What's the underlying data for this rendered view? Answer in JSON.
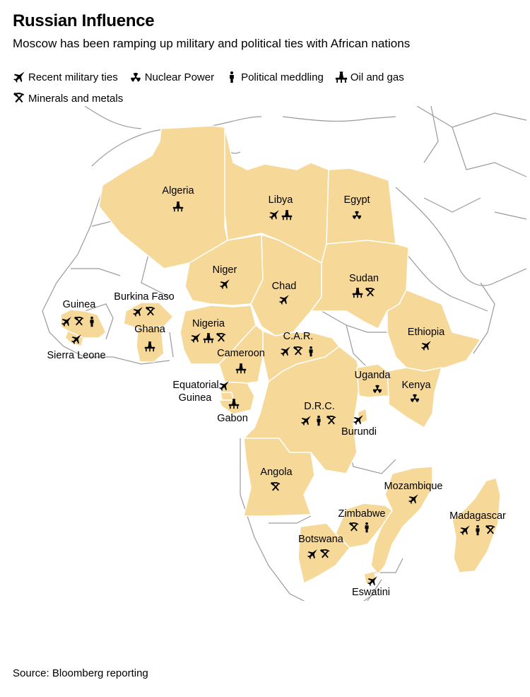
{
  "title": "Russian Influence",
  "subtitle": "Moscow has been ramping up military and political ties with African nations",
  "source": "Source: Bloomberg reporting",
  "colors": {
    "highlight": "#f6d998",
    "border": "#ffffff",
    "base_land": "#ffffff",
    "outline": "#9a9a9a"
  },
  "legend": {
    "military": {
      "label": "Recent military ties",
      "icon": "fighter-jet-icon"
    },
    "nuclear": {
      "label": "Nuclear Power",
      "icon": "radiation-icon"
    },
    "political": {
      "label": "Political meddling",
      "icon": "person-icon"
    },
    "oil": {
      "label": "Oil and gas",
      "icon": "oil-rig-icon"
    },
    "minerals": {
      "label": "Minerals and metals",
      "icon": "hammer-pick-icon"
    }
  },
  "countries": [
    {
      "name": "Algeria",
      "label": "Algeria",
      "ties": [
        "oil"
      ]
    },
    {
      "name": "Libya",
      "label": "Libya",
      "ties": [
        "military",
        "oil"
      ]
    },
    {
      "name": "Egypt",
      "label": "Egypt",
      "ties": [
        "nuclear"
      ]
    },
    {
      "name": "Niger",
      "label": "Niger",
      "ties": [
        "military"
      ]
    },
    {
      "name": "Chad",
      "label": "Chad",
      "ties": [
        "military"
      ]
    },
    {
      "name": "Sudan",
      "label": "Sudan",
      "ties": [
        "oil",
        "minerals"
      ]
    },
    {
      "name": "Guinea",
      "label": "Guinea",
      "ties": [
        "military",
        "minerals",
        "political"
      ]
    },
    {
      "name": "Sierra Leone",
      "label": "Sierra Leone",
      "ties": [
        "military"
      ]
    },
    {
      "name": "Burkina Faso",
      "label": "Burkina Faso",
      "ties": [
        "military",
        "minerals"
      ]
    },
    {
      "name": "Ghana",
      "label": "Ghana",
      "ties": [
        "oil"
      ]
    },
    {
      "name": "Nigeria",
      "label": "Nigeria",
      "ties": [
        "military",
        "oil",
        "minerals"
      ]
    },
    {
      "name": "Cameroon",
      "label": "Cameroon",
      "ties": [
        "oil"
      ]
    },
    {
      "name": "C.A.R.",
      "label": "C.A.R.",
      "ties": [
        "military",
        "minerals",
        "political"
      ]
    },
    {
      "name": "Ethiopia",
      "label": "Ethiopia",
      "ties": [
        "military"
      ]
    },
    {
      "name": "Equatorial Guinea",
      "label_lines": [
        "Equatorial",
        "Guinea"
      ],
      "ties": [
        "military"
      ]
    },
    {
      "name": "Gabon",
      "label": "Gabon",
      "ties": [
        "oil"
      ]
    },
    {
      "name": "Uganda",
      "label": "Uganda",
      "ties": [
        "nuclear"
      ]
    },
    {
      "name": "Kenya",
      "label": "Kenya",
      "ties": [
        "nuclear"
      ]
    },
    {
      "name": "D.R.C.",
      "label": "D.R.C.",
      "ties": [
        "military",
        "political",
        "minerals"
      ]
    },
    {
      "name": "Burundi",
      "label": "Burundi",
      "ties": [
        "military"
      ]
    },
    {
      "name": "Angola",
      "label": "Angola",
      "ties": [
        "minerals"
      ]
    },
    {
      "name": "Mozambique",
      "label": "Mozambique",
      "ties": [
        "military"
      ]
    },
    {
      "name": "Zimbabwe",
      "label": "Zimbabwe",
      "ties": [
        "minerals",
        "political"
      ]
    },
    {
      "name": "Madagascar",
      "label": "Madagascar",
      "ties": [
        "military",
        "political",
        "minerals"
      ]
    },
    {
      "name": "Botswana",
      "label": "Botswana",
      "ties": [
        "military",
        "minerals"
      ]
    },
    {
      "name": "Eswatini",
      "label": "Eswatini",
      "ties": [
        "military"
      ]
    }
  ]
}
